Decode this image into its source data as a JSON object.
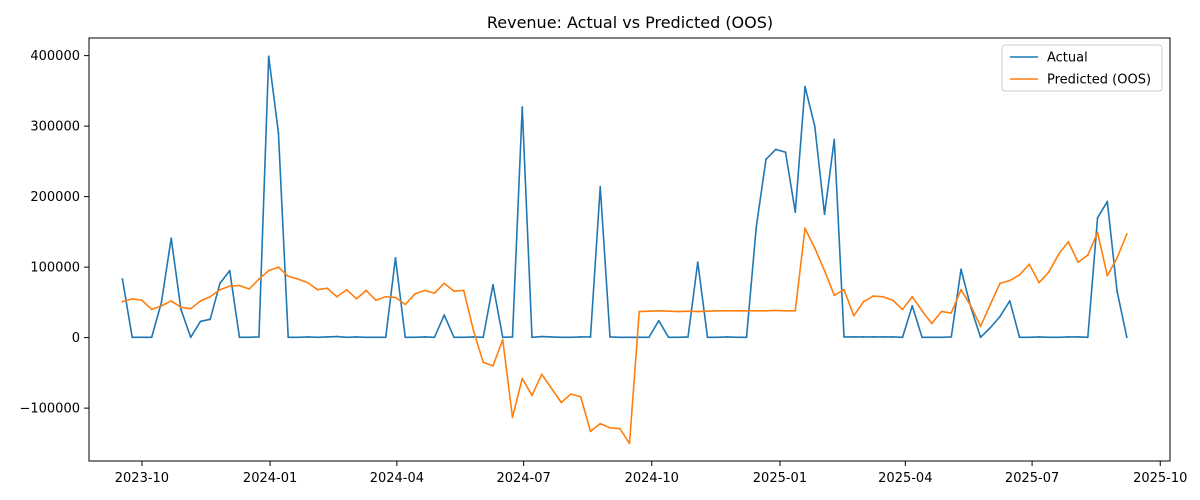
{
  "chart_data": {
    "type": "line",
    "title": "Revenue: Actual vs Predicted (OOS)",
    "xlabel": "",
    "ylabel": "",
    "x_type": "date",
    "xlim": [
      "2023-08-24",
      "2025-10-08"
    ],
    "ylim": [
      -175000,
      425000
    ],
    "x_ticks": [
      {
        "date": "2023-10-01",
        "label": "2023-10"
      },
      {
        "date": "2024-01-01",
        "label": "2024-01"
      },
      {
        "date": "2024-04-01",
        "label": "2024-04"
      },
      {
        "date": "2024-07-01",
        "label": "2024-07"
      },
      {
        "date": "2024-10-01",
        "label": "2024-10"
      },
      {
        "date": "2025-01-01",
        "label": "2025-01"
      },
      {
        "date": "2025-04-01",
        "label": "2025-04"
      },
      {
        "date": "2025-07-01",
        "label": "2025-07"
      },
      {
        "date": "2025-10-01",
        "label": "2025-10"
      }
    ],
    "y_ticks": [
      {
        "value": -100000,
        "label": "−100000"
      },
      {
        "value": 0,
        "label": "0"
      },
      {
        "value": 100000,
        "label": "100000"
      },
      {
        "value": 200000,
        "label": "200000"
      },
      {
        "value": 300000,
        "label": "300000"
      },
      {
        "value": 400000,
        "label": "400000"
      }
    ],
    "grid": false,
    "legend_position": "top-right",
    "x": [
      "2023-09-17",
      "2023-09-24",
      "2023-10-01",
      "2023-10-08",
      "2023-10-15",
      "2023-10-22",
      "2023-10-29",
      "2023-11-05",
      "2023-11-12",
      "2023-11-19",
      "2023-11-26",
      "2023-12-03",
      "2023-12-10",
      "2023-12-17",
      "2023-12-24",
      "2023-12-31",
      "2024-01-07",
      "2024-01-14",
      "2024-01-21",
      "2024-01-28",
      "2024-02-04",
      "2024-02-11",
      "2024-02-18",
      "2024-02-25",
      "2024-03-03",
      "2024-03-10",
      "2024-03-17",
      "2024-03-24",
      "2024-03-31",
      "2024-04-07",
      "2024-04-14",
      "2024-04-21",
      "2024-04-28",
      "2024-05-05",
      "2024-05-12",
      "2024-05-19",
      "2024-05-26",
      "2024-06-02",
      "2024-06-09",
      "2024-06-16",
      "2024-06-23",
      "2024-06-30",
      "2024-07-07",
      "2024-07-14",
      "2024-07-21",
      "2024-07-28",
      "2024-08-04",
      "2024-08-11",
      "2024-08-18",
      "2024-08-25",
      "2024-09-01",
      "2024-09-08",
      "2024-09-15",
      "2024-09-22",
      "2024-09-29",
      "2024-10-06",
      "2024-10-13",
      "2024-10-20",
      "2024-10-27",
      "2024-11-03",
      "2024-11-10",
      "2024-11-17",
      "2024-11-24",
      "2024-12-01",
      "2024-12-08",
      "2024-12-15",
      "2024-12-22",
      "2024-12-29",
      "2025-01-05",
      "2025-01-12",
      "2025-01-19",
      "2025-01-26",
      "2025-02-02",
      "2025-02-09",
      "2025-02-16",
      "2025-02-23",
      "2025-03-02",
      "2025-03-09",
      "2025-03-16",
      "2025-03-23",
      "2025-03-30",
      "2025-04-06",
      "2025-04-13",
      "2025-04-20",
      "2025-04-27",
      "2025-05-04",
      "2025-05-11",
      "2025-05-18",
      "2025-05-25",
      "2025-06-01",
      "2025-06-08",
      "2025-06-15",
      "2025-06-22",
      "2025-06-29",
      "2025-07-06",
      "2025-07-13",
      "2025-07-20",
      "2025-07-27",
      "2025-08-03",
      "2025-08-10",
      "2025-08-17",
      "2025-08-24",
      "2025-08-31",
      "2025-09-07"
    ],
    "series": [
      {
        "name": "Actual",
        "color": "#1f77b4",
        "values": [
          83000,
          500,
          500,
          500,
          50000,
          141000,
          40000,
          500,
          23000,
          26000,
          77000,
          95000,
          500,
          500,
          1000,
          399000,
          290000,
          500,
          500,
          1000,
          500,
          1000,
          1500,
          500,
          1000,
          500,
          500,
          500,
          113000,
          500,
          500,
          1000,
          500,
          32000,
          500,
          500,
          1000,
          500,
          75000,
          500,
          1000,
          327000,
          500,
          1500,
          1000,
          500,
          500,
          1000,
          1000,
          214000,
          1000,
          500,
          500,
          500,
          500,
          24000,
          500,
          500,
          1000,
          107000,
          500,
          500,
          1000,
          500,
          500,
          157000,
          253000,
          267000,
          263000,
          178000,
          356000,
          300000,
          175000,
          281000,
          1000,
          1000,
          1000,
          1000,
          1000,
          1000,
          500,
          45000,
          500,
          500,
          500,
          1000,
          97000,
          43000,
          500,
          14000,
          30000,
          52000,
          500,
          500,
          1000,
          500,
          500,
          1000,
          1000,
          500,
          170000,
          193000,
          66000,
          500
        ]
      },
      {
        "name": "Predicted (OOS)",
        "color": "#ff7f0e",
        "values": [
          51000,
          55000,
          53000,
          40000,
          45000,
          52000,
          43000,
          41000,
          52000,
          58000,
          68000,
          73000,
          74000,
          69000,
          83000,
          95000,
          100000,
          87000,
          83000,
          78000,
          68000,
          70000,
          58000,
          68000,
          55000,
          67000,
          53000,
          58000,
          57000,
          47000,
          62000,
          67000,
          63000,
          77000,
          66000,
          67000,
          10000,
          -35000,
          -40000,
          -3000,
          -113000,
          -58000,
          -82000,
          -52000,
          -72000,
          -92000,
          -80000,
          -84000,
          -133000,
          -122000,
          -128000,
          -129000,
          -150000,
          37000,
          37500,
          38000,
          37500,
          37000,
          37500,
          37000,
          37500,
          38000,
          38000,
          38000,
          38000,
          38000,
          38000,
          38500,
          38000,
          38000,
          155000,
          127000,
          95000,
          60000,
          68000,
          31000,
          51000,
          59000,
          58000,
          53000,
          40000,
          58000,
          38000,
          20000,
          37000,
          35000,
          68000,
          45000,
          16000,
          47000,
          77000,
          81000,
          89000,
          104000,
          78000,
          93000,
          118000,
          136000,
          107000,
          117000,
          149000,
          88000,
          113000,
          147000
        ]
      }
    ]
  }
}
